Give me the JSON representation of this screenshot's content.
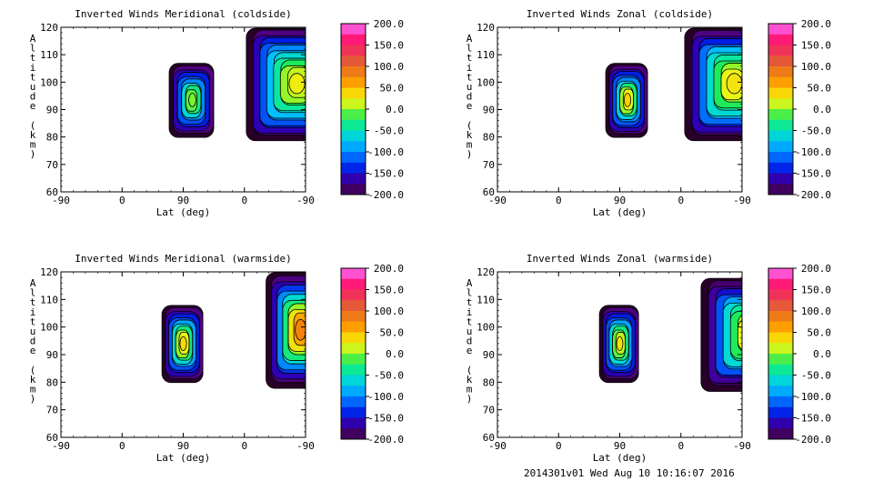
{
  "chart_data": [
    {
      "type": "contour",
      "title": "Inverted Winds Meridional (coldside)",
      "xlabel": "Lat (deg)",
      "ylabel": "Altitude (km)",
      "xticks": [
        "-90",
        "0",
        "90",
        "0",
        "-90"
      ],
      "yticks": [
        60,
        70,
        80,
        90,
        100,
        110,
        120
      ],
      "ylim": [
        60,
        120
      ],
      "blobs": [
        {
          "x0": 120,
          "x1": 169,
          "y0": 80,
          "y1": 107,
          "levels": [
            -200,
            -180,
            -160,
            -140,
            -120,
            -100,
            -60,
            -30,
            -10
          ],
          "peak": -5
        },
        {
          "x0": 206,
          "x1": 313,
          "y0": 79,
          "y1": 120,
          "levels": [
            -200,
            -180,
            -160,
            -140,
            -120,
            -100,
            -80,
            -60,
            -40,
            -20,
            0,
            10
          ],
          "peak": 25
        }
      ],
      "colorbar": {
        "min": -200,
        "max": 200,
        "ticks": [
          "200.0",
          "150.0",
          "100.0",
          "50.0",
          "0.0",
          "-50.0",
          "-100.0",
          "-150.0",
          "-200.0"
        ]
      }
    },
    {
      "type": "contour",
      "title": "Inverted Winds Zonal (coldside)",
      "xlabel": "Lat (deg)",
      "ylabel": "Altitude (km)",
      "xticks": [
        "-90",
        "0",
        "90",
        "0",
        "-90"
      ],
      "yticks": [
        60,
        70,
        80,
        90,
        100,
        110,
        120
      ],
      "ylim": [
        60,
        120
      ],
      "blobs": [
        {
          "x0": 600,
          "x1": 646,
          "y0": 80,
          "y1": 107,
          "levels": [
            -200,
            -180,
            -160,
            -140,
            -120,
            -100,
            -70,
            -30,
            0,
            20
          ],
          "peak": 40
        },
        {
          "x0": 688,
          "x1": 793,
          "y0": 79,
          "y1": 120,
          "levels": [
            -200,
            -180,
            -160,
            -140,
            -110,
            -80,
            -60,
            -40,
            -20,
            0,
            20
          ],
          "peak": 30
        }
      ],
      "colorbar": {
        "min": -200,
        "max": 200,
        "ticks": [
          "200.0",
          "150.0",
          "100.0",
          "50.0",
          "0.0",
          "-50.0",
          "-100.0",
          "-150.0",
          "-200.0"
        ]
      }
    },
    {
      "type": "contour",
      "title": "Inverted Winds Meridional (warmside)",
      "xlabel": "Lat (deg)",
      "ylabel": "Altitude (km)",
      "xticks": [
        "-90",
        "0",
        "90",
        "0",
        "-90"
      ],
      "yticks": [
        60,
        70,
        80,
        90,
        100,
        110,
        120
      ],
      "ylim": [
        60,
        120
      ],
      "blobs": [
        {
          "x0": 112,
          "x1": 157,
          "y0": 80,
          "y1": 108,
          "levels": [
            -200,
            -180,
            -160,
            -140,
            -120,
            -90,
            -60,
            -30,
            0,
            20
          ],
          "peak": 35
        },
        {
          "x0": 227,
          "x1": 300,
          "y0": 78,
          "y1": 120,
          "levels": [
            -200,
            -180,
            -160,
            -130,
            -100,
            -60,
            -30,
            0,
            30,
            60
          ],
          "peak": 80
        },
        {
          "x0": 297,
          "x1": 335,
          "y0": 77,
          "y1": 120,
          "levels": [
            -200,
            -190,
            -170,
            -150,
            -130,
            -110,
            -90,
            -60
          ],
          "peak": -40
        }
      ],
      "colorbar": {
        "min": -200,
        "max": 200,
        "ticks": [
          "200.0",
          "150.0",
          "100.0",
          "50.0",
          "0.0",
          "-50.0",
          "-100.0",
          "-150.0",
          "-200.0"
        ]
      }
    },
    {
      "type": "contour",
      "title": "Inverted Winds Zonal (warmside)",
      "xlabel": "Lat (deg)",
      "ylabel": "Altitude (km)",
      "xticks": [
        "-90",
        "0",
        "90",
        "0",
        "-90"
      ],
      "yticks": [
        60,
        70,
        80,
        90,
        100,
        110,
        120
      ],
      "ylim": [
        60,
        120
      ],
      "blobs": [
        {
          "x0": 593,
          "x1": 636,
          "y0": 80,
          "y1": 108,
          "levels": [
            -200,
            -180,
            -160,
            -140,
            -120,
            -90,
            -60,
            -30,
            -10,
            10
          ],
          "peak": 30
        },
        {
          "x0": 706,
          "x1": 812,
          "y0": 77,
          "y1": 118,
          "levels": [
            -200,
            -185,
            -170,
            -150,
            -120,
            -90,
            -60,
            -40,
            -20,
            0,
            20
          ],
          "peak": 35
        }
      ],
      "colorbar": {
        "min": -200,
        "max": 200,
        "ticks": [
          "200.0",
          "150.0",
          "100.0",
          "50.0",
          "0.0",
          "-50.0",
          "-100.0",
          "-150.0",
          "-200.0"
        ]
      }
    }
  ],
  "footer": "2014301v01 Wed Aug 10 10:16:07 2016"
}
